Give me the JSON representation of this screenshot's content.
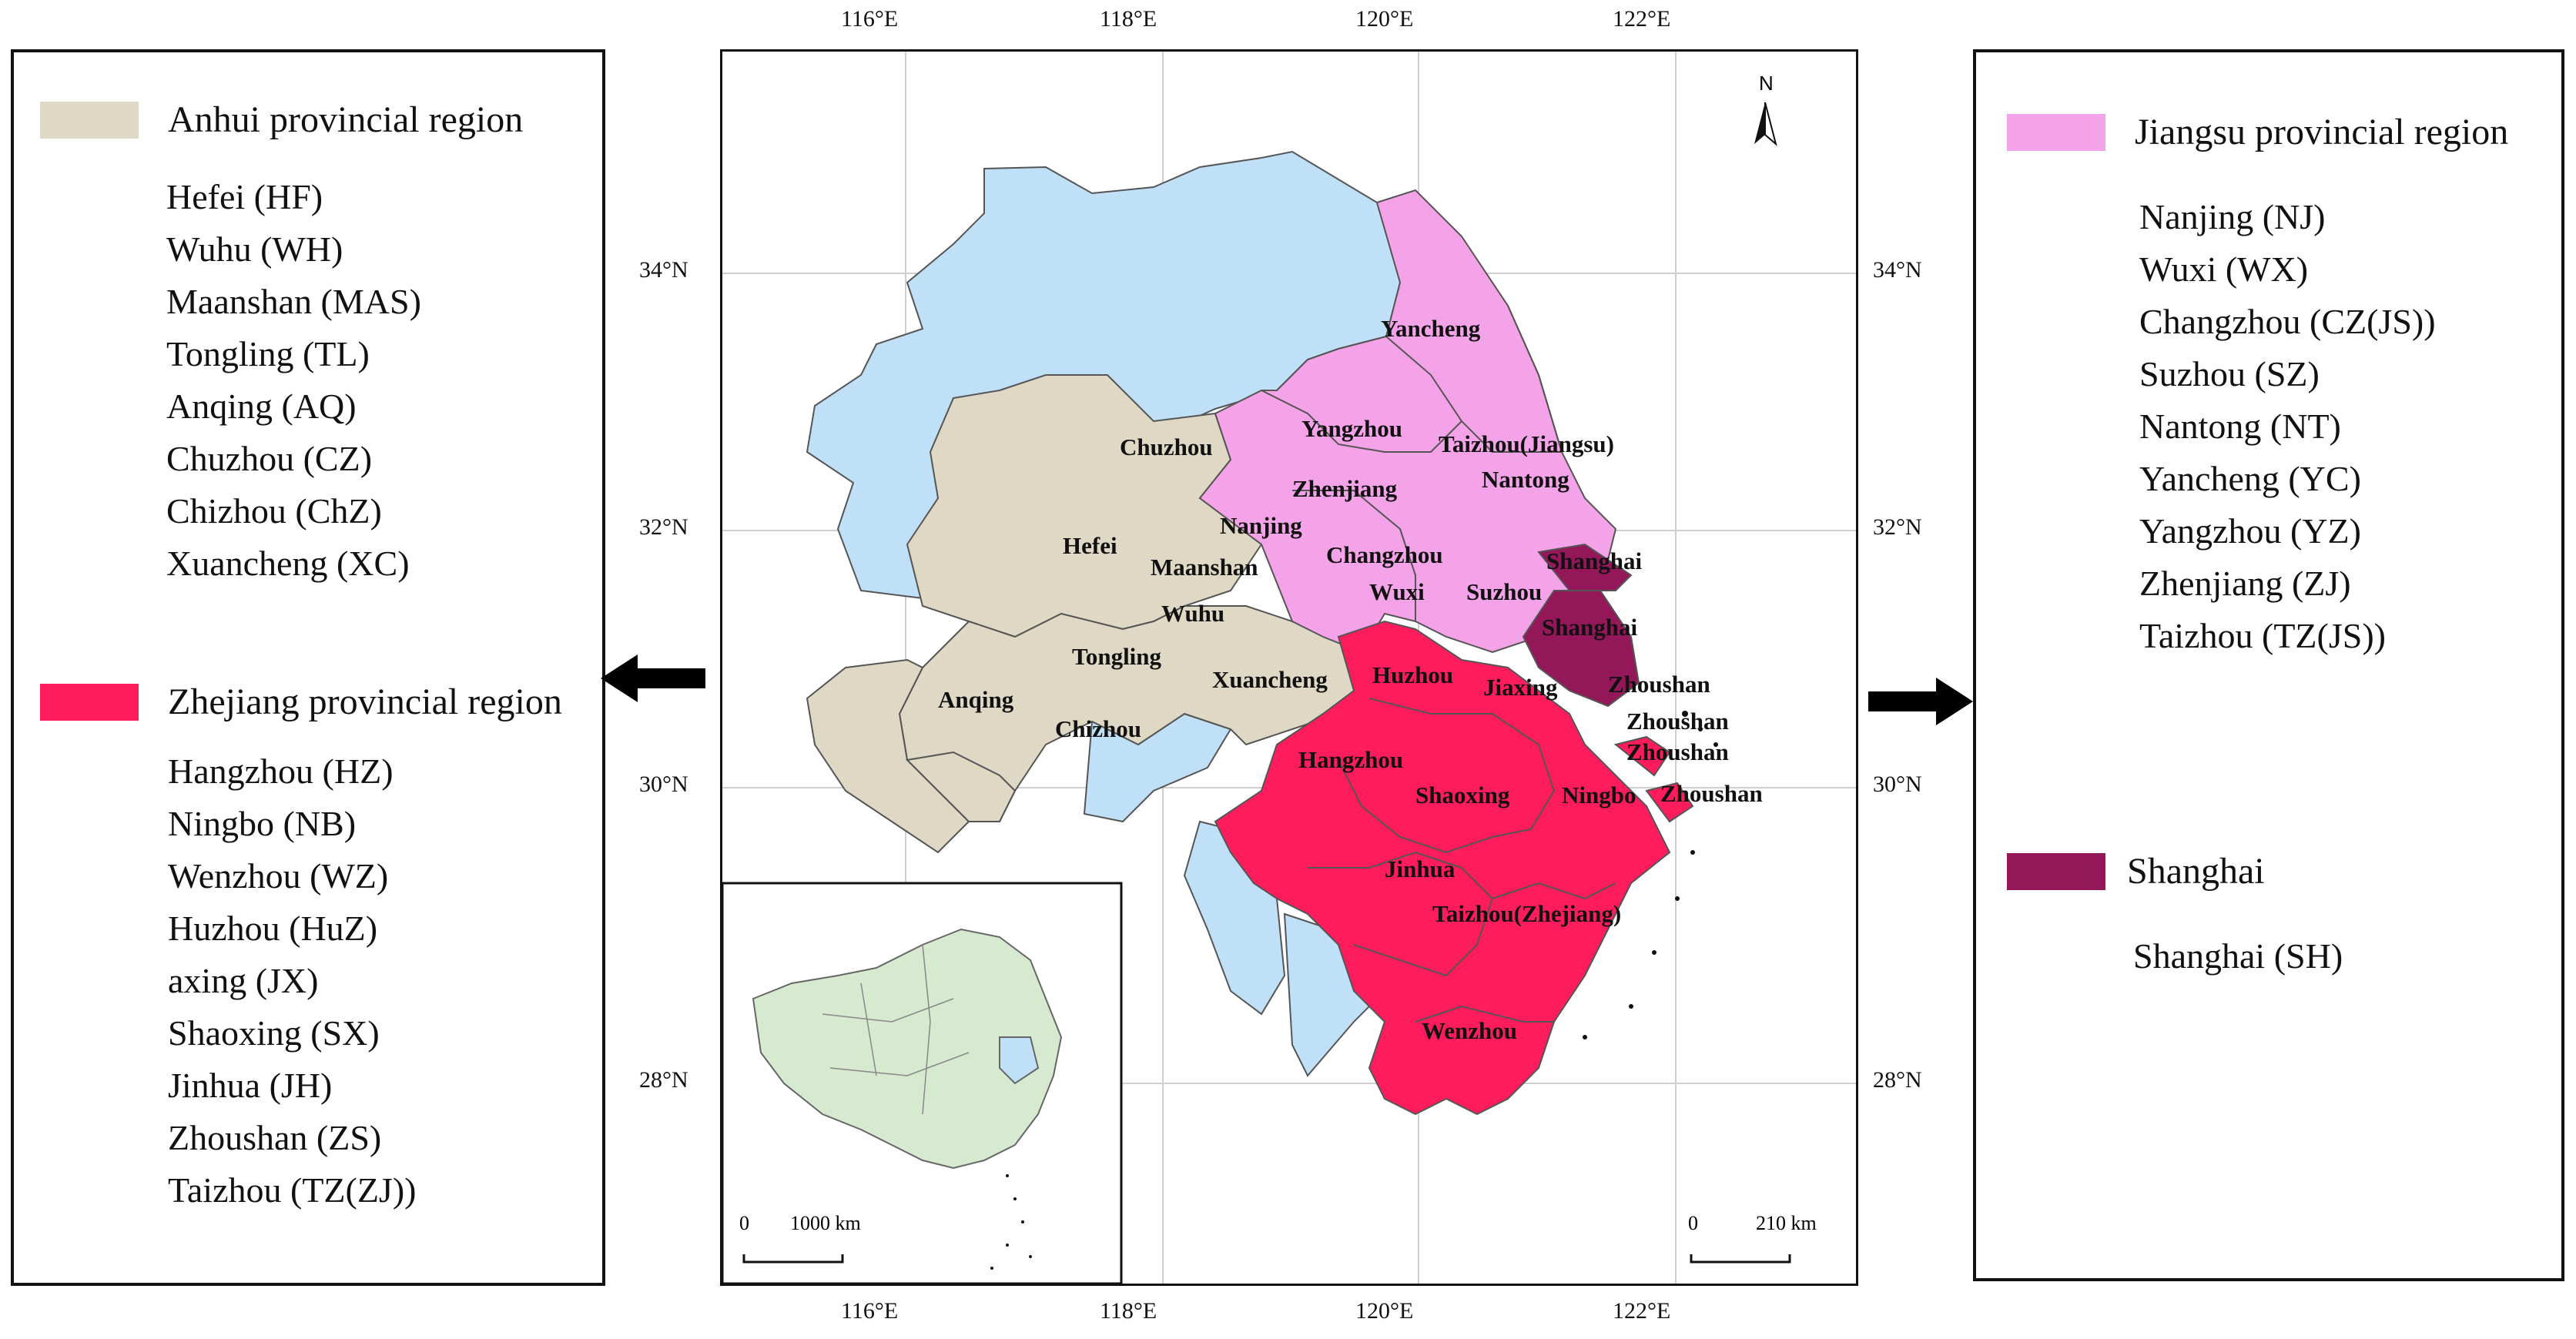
{
  "left_legend": {
    "anhui": {
      "title": "Anhui provincial region",
      "color": "#ded8c4",
      "cities": [
        "Hefei (HF)",
        "Wuhu (WH)",
        "Maanshan (MAS)",
        "Tongling (TL)",
        "Anqing (AQ)",
        "Chuzhou (CZ)",
        "Chizhou (ChZ)",
        "Xuancheng (XC)"
      ]
    },
    "zhejiang": {
      "title": "Zhejiang provincial region",
      "color": "#ff1c5c",
      "cities": [
        "Hangzhou (HZ)",
        "Ningbo (NB)",
        "Wenzhou (WZ)",
        "Huzhou (HuZ)",
        "axing (JX)",
        "Shaoxing (SX)",
        "Jinhua (JH)",
        "Zhoushan (ZS)",
        "Taizhou (TZ(ZJ))"
      ]
    }
  },
  "right_legend": {
    "jiangsu": {
      "title": "Jiangsu provincial region",
      "color": "#f4a3e8",
      "cities": [
        "Nanjing (NJ)",
        "Wuxi (WX)",
        "Changzhou (CZ(JS))",
        "Suzhou (SZ)",
        "Nantong (NT)",
        "Yancheng (YC)",
        "Yangzhou (YZ)",
        "Zhenjiang (ZJ)",
        "Taizhou (TZ(JS))"
      ]
    },
    "shanghai": {
      "title": "Shanghai",
      "color": "#94175a",
      "cities": [
        "Shanghai (SH)"
      ]
    }
  },
  "map": {
    "lon_ticks": [
      "116°E",
      "118°E",
      "120°E",
      "122°E"
    ],
    "lat_ticks": [
      "34°N",
      "32°N",
      "30°N",
      "28°N"
    ],
    "north_label": "N",
    "other_region_color": "#bfe0f7",
    "region_labels": {
      "yancheng": "Yancheng",
      "yangzhou": "Yangzhou",
      "taizhou_js": "Taizhou(Jiangsu)",
      "nantong": "Nantong",
      "zhenjiang": "Zhenjiang",
      "nanjing": "Nanjing",
      "changzhou": "Changzhou",
      "wuxi": "Wuxi",
      "suzhou": "Suzhou",
      "shanghai_1": "Shanghai",
      "shanghai_2": "Shanghai",
      "chuzhou": "Chuzhou",
      "hefei": "Hefei",
      "maanshan": "Maanshan",
      "wuhu": "Wuhu",
      "tongling": "Tongling",
      "xuancheng": "Xuancheng",
      "anqing": "Anqing",
      "chizhou": "Chizhou",
      "huzhou": "Huzhou",
      "jiaxing": "Jiaxing",
      "zhoushan_1": "Zhoushan",
      "zhoushan_2": "Zhoushan",
      "zhoushan_3": "Zhoushan",
      "zhoushan_4": "Zhoushan",
      "hangzhou": "Hangzhou",
      "shaoxing": "Shaoxing",
      "ningbo": "Ningbo",
      "jinhua": "Jinhua",
      "taizhou_zj": "Taizhou(Zhejiang)",
      "wenzhou": "Wenzhou"
    },
    "inset": {
      "scale_zero": "0",
      "scale_label": "1000 km",
      "land_color": "#d6ead0"
    },
    "main_scale": {
      "scale_zero": "0",
      "scale_label": "210 km"
    }
  }
}
